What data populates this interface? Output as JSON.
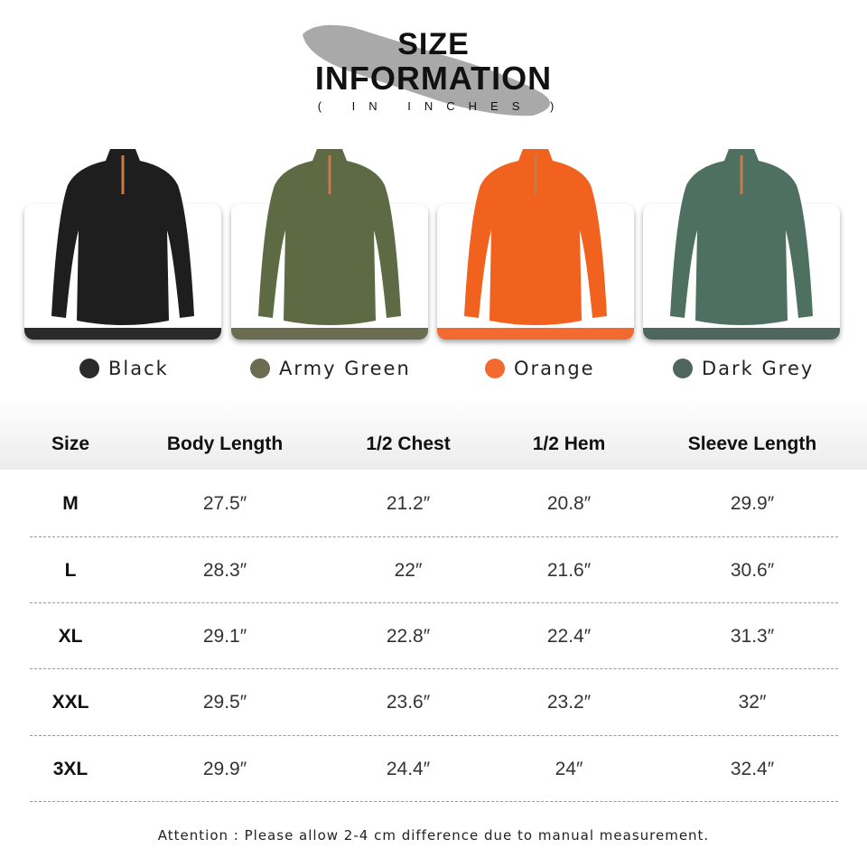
{
  "title": {
    "line1": "SIZE",
    "line2": "INFORMATION",
    "unit": "( IN INCHES )"
  },
  "colors": [
    {
      "label": "Black",
      "swatch": "#2a2a2a",
      "shirt": "#1e1e1e"
    },
    {
      "label": "Army Green",
      "swatch": "#6b6d50",
      "shirt": "#5d6a44"
    },
    {
      "label": "Orange",
      "swatch": "#f26a30",
      "shirt": "#f0621e"
    },
    {
      "label": "Dark Grey",
      "swatch": "#4f665e",
      "shirt": "#4e7060"
    }
  ],
  "table": {
    "headers": [
      "Size",
      "Body Length",
      "1/2 Chest",
      "1/2 Hem",
      "Sleeve Length"
    ],
    "rows": [
      [
        "M",
        "27.5″",
        "21.2″",
        "20.8″",
        "29.9″"
      ],
      [
        "L",
        "28.3″",
        "22″",
        "21.6″",
        "30.6″"
      ],
      [
        "XL",
        "29.1″",
        "22.8″",
        "22.4″",
        "31.3″"
      ],
      [
        "XXL",
        "29.5″",
        "23.6″",
        "23.2″",
        "32″"
      ],
      [
        "3XL",
        "29.9″",
        "24.4″",
        "24″",
        "32.4″"
      ]
    ]
  },
  "footer": "Attention : Please allow 2-4 cm difference due to manual measurement."
}
